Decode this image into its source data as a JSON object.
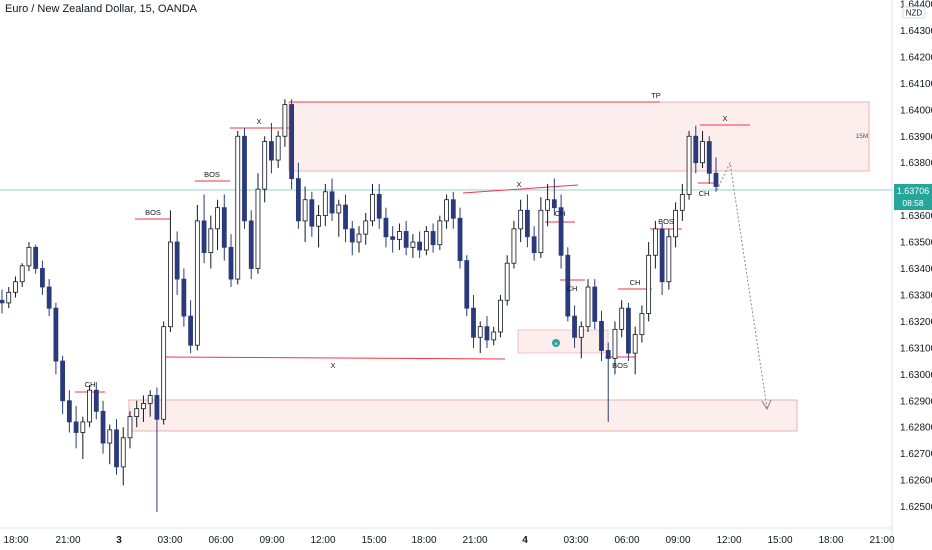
{
  "header": {
    "title": "Euro / New Zealand Dollar, 15, OANDA",
    "currency": "NZD"
  },
  "colors": {
    "up": "#131722",
    "down": "#2a3a7a",
    "price_line": "#26a69a",
    "zone_fill": "#fdeeee",
    "zone_stroke": "#e8a0a0",
    "level_red": "#f23645"
  },
  "price_marker": {
    "price": "1.63706",
    "timer": "08:58"
  },
  "chart_data": {
    "type": "candlestick",
    "symbol": "Euro / New Zealand Dollar",
    "timeframe": "15",
    "broker": "OANDA",
    "ylim": [
      1.6245,
      1.6448
    ],
    "y_ticks": [
      "1.64400",
      "1.64300",
      "1.64200",
      "1.64100",
      "1.64000",
      "1.63900",
      "1.63800",
      "1.63700",
      "1.63600",
      "1.63500",
      "1.63400",
      "1.63300",
      "1.63200",
      "1.63100",
      "1.63000",
      "1.62900",
      "1.62800",
      "1.62700",
      "1.62600",
      "1.62500"
    ],
    "x_ticks": [
      "18:00",
      "21:00",
      "3",
      "03:00",
      "06:00",
      "09:00",
      "12:00",
      "15:00",
      "18:00",
      "21:00",
      "4",
      "03:00",
      "06:00",
      "09:00",
      "12:00",
      "15:00",
      "18:00",
      "21:00"
    ],
    "current_price": 1.63706,
    "ohlc": [
      [
        1.6328,
        1.6332,
        1.6323,
        1.6327
      ],
      [
        1.6327,
        1.6333,
        1.6325,
        1.6331
      ],
      [
        1.6331,
        1.6337,
        1.6329,
        1.6335
      ],
      [
        1.6335,
        1.6342,
        1.6333,
        1.6341
      ],
      [
        1.6341,
        1.635,
        1.6339,
        1.6348
      ],
      [
        1.6348,
        1.6349,
        1.6338,
        1.634
      ],
      [
        1.634,
        1.6343,
        1.633,
        1.6333
      ],
      [
        1.6333,
        1.6336,
        1.6322,
        1.6325
      ],
      [
        1.6325,
        1.6327,
        1.63,
        1.6305
      ],
      [
        1.6305,
        1.6307,
        1.6285,
        1.629
      ],
      [
        1.629,
        1.6294,
        1.6278,
        1.6282
      ],
      [
        1.6282,
        1.6288,
        1.6272,
        1.6278
      ],
      [
        1.6278,
        1.6284,
        1.6268,
        1.6282
      ],
      [
        1.6282,
        1.6296,
        1.628,
        1.6294
      ],
      [
        1.6294,
        1.6297,
        1.6283,
        1.6286
      ],
      [
        1.6286,
        1.629,
        1.627,
        1.6274
      ],
      [
        1.6274,
        1.6281,
        1.6266,
        1.6279
      ],
      [
        1.6279,
        1.6283,
        1.6262,
        1.6265
      ],
      [
        1.6265,
        1.628,
        1.6258,
        1.6276
      ],
      [
        1.6276,
        1.6286,
        1.6272,
        1.6284
      ],
      [
        1.6284,
        1.629,
        1.628,
        1.6287
      ],
      [
        1.6287,
        1.6292,
        1.6282,
        1.6289
      ],
      [
        1.6289,
        1.6294,
        1.6284,
        1.6292
      ],
      [
        1.6292,
        1.6295,
        1.6248,
        1.6283
      ],
      [
        1.6283,
        1.632,
        1.6281,
        1.6318
      ],
      [
        1.6318,
        1.6362,
        1.6316,
        1.635
      ],
      [
        1.635,
        1.6354,
        1.633,
        1.6336
      ],
      [
        1.6336,
        1.634,
        1.6318,
        1.6322
      ],
      [
        1.6322,
        1.6328,
        1.6308,
        1.6311
      ],
      [
        1.6311,
        1.6364,
        1.6309,
        1.6358
      ],
      [
        1.6358,
        1.6368,
        1.6342,
        1.6346
      ],
      [
        1.6346,
        1.636,
        1.634,
        1.6355
      ],
      [
        1.6355,
        1.6366,
        1.6347,
        1.6363
      ],
      [
        1.6363,
        1.6368,
        1.6343,
        1.6348
      ],
      [
        1.6348,
        1.6353,
        1.6333,
        1.6336
      ],
      [
        1.6336,
        1.6392,
        1.6334,
        1.639
      ],
      [
        1.639,
        1.6393,
        1.6355,
        1.6358
      ],
      [
        1.6358,
        1.6362,
        1.6336,
        1.634
      ],
      [
        1.634,
        1.6376,
        1.6338,
        1.637
      ],
      [
        1.637,
        1.639,
        1.6365,
        1.6388
      ],
      [
        1.6388,
        1.6395,
        1.6376,
        1.6381
      ],
      [
        1.6381,
        1.6392,
        1.6378,
        1.639
      ],
      [
        1.639,
        1.6404,
        1.6386,
        1.6402
      ],
      [
        1.6402,
        1.6404,
        1.637,
        1.6374
      ],
      [
        1.6374,
        1.638,
        1.6355,
        1.6358
      ],
      [
        1.6358,
        1.6371,
        1.635,
        1.6366
      ],
      [
        1.6366,
        1.6369,
        1.6352,
        1.6356
      ],
      [
        1.6356,
        1.6364,
        1.6348,
        1.636
      ],
      [
        1.636,
        1.6372,
        1.6356,
        1.6369
      ],
      [
        1.6369,
        1.6374,
        1.6358,
        1.6361
      ],
      [
        1.6361,
        1.6366,
        1.6352,
        1.6364
      ],
      [
        1.6364,
        1.6368,
        1.635,
        1.6355
      ],
      [
        1.6355,
        1.6358,
        1.6345,
        1.635
      ],
      [
        1.635,
        1.6356,
        1.6346,
        1.6353
      ],
      [
        1.6353,
        1.6361,
        1.6349,
        1.6358
      ],
      [
        1.6358,
        1.6372,
        1.6356,
        1.6368
      ],
      [
        1.6368,
        1.6372,
        1.6355,
        1.6359
      ],
      [
        1.6359,
        1.6363,
        1.6348,
        1.6352
      ],
      [
        1.6352,
        1.6356,
        1.6346,
        1.6351
      ],
      [
        1.6351,
        1.6357,
        1.6347,
        1.6354
      ],
      [
        1.6354,
        1.6358,
        1.6345,
        1.6348
      ],
      [
        1.6348,
        1.6353,
        1.6344,
        1.635
      ],
      [
        1.635,
        1.6354,
        1.6344,
        1.6347
      ],
      [
        1.6347,
        1.6356,
        1.6345,
        1.6354
      ],
      [
        1.6354,
        1.6357,
        1.6346,
        1.6349
      ],
      [
        1.6349,
        1.636,
        1.6347,
        1.6358
      ],
      [
        1.6358,
        1.6368,
        1.6355,
        1.6366
      ],
      [
        1.6366,
        1.6369,
        1.6355,
        1.6359
      ],
      [
        1.6359,
        1.6363,
        1.634,
        1.6343
      ],
      [
        1.6343,
        1.6345,
        1.6322,
        1.6325
      ],
      [
        1.6325,
        1.633,
        1.631,
        1.6314
      ],
      [
        1.6314,
        1.632,
        1.6308,
        1.6318
      ],
      [
        1.6318,
        1.6322,
        1.631,
        1.6313
      ],
      [
        1.6313,
        1.6318,
        1.6311,
        1.6316
      ],
      [
        1.6316,
        1.633,
        1.6314,
        1.6328
      ],
      [
        1.6328,
        1.6345,
        1.6326,
        1.6342
      ],
      [
        1.6342,
        1.6358,
        1.634,
        1.6355
      ],
      [
        1.6355,
        1.6366,
        1.635,
        1.6362
      ],
      [
        1.6362,
        1.6368,
        1.6348,
        1.6352
      ],
      [
        1.6352,
        1.6356,
        1.6343,
        1.6346
      ],
      [
        1.6346,
        1.6367,
        1.6344,
        1.6362
      ],
      [
        1.6362,
        1.6372,
        1.6356,
        1.6366
      ],
      [
        1.6366,
        1.6374,
        1.636,
        1.6363
      ],
      [
        1.6363,
        1.6368,
        1.634,
        1.6345
      ],
      [
        1.6345,
        1.6348,
        1.632,
        1.6322
      ],
      [
        1.6322,
        1.6326,
        1.631,
        1.6314
      ],
      [
        1.6314,
        1.632,
        1.6306,
        1.6318
      ],
      [
        1.6318,
        1.6336,
        1.6316,
        1.6333
      ],
      [
        1.6333,
        1.6336,
        1.6317,
        1.632
      ],
      [
        1.632,
        1.6324,
        1.6305,
        1.6309
      ],
      [
        1.6309,
        1.6312,
        1.6282,
        1.6306
      ],
      [
        1.6306,
        1.632,
        1.63,
        1.6317
      ],
      [
        1.6317,
        1.6328,
        1.6314,
        1.6325
      ],
      [
        1.6325,
        1.6327,
        1.6305,
        1.6308
      ],
      [
        1.6308,
        1.6318,
        1.63,
        1.6315
      ],
      [
        1.6315,
        1.6326,
        1.6312,
        1.6323
      ],
      [
        1.6323,
        1.635,
        1.632,
        1.6345
      ],
      [
        1.6345,
        1.6358,
        1.634,
        1.6355
      ],
      [
        1.6355,
        1.6357,
        1.633,
        1.6335
      ],
      [
        1.6335,
        1.6355,
        1.6332,
        1.6352
      ],
      [
        1.6352,
        1.6365,
        1.6348,
        1.6362
      ],
      [
        1.6362,
        1.6372,
        1.6358,
        1.6368
      ],
      [
        1.6368,
        1.6392,
        1.6366,
        1.639
      ],
      [
        1.639,
        1.6394,
        1.6376,
        1.638
      ],
      [
        1.638,
        1.6392,
        1.6378,
        1.6388
      ],
      [
        1.6388,
        1.639,
        1.6372,
        1.6376
      ],
      [
        1.6376,
        1.6382,
        1.6369,
        1.6371
      ]
    ]
  },
  "annotations": {
    "x1": "X",
    "tp": "TP",
    "x2": "X",
    "x3": "X",
    "x4": "X",
    "bos1": "BOS",
    "bos2": "BOS",
    "bos3": "BOS",
    "bos4": "BOS",
    "ch1": "CH",
    "ch2": "CH",
    "ch3": "CH",
    "ch4": "CH",
    "ch5": "CH",
    "zone_label": "15M"
  }
}
